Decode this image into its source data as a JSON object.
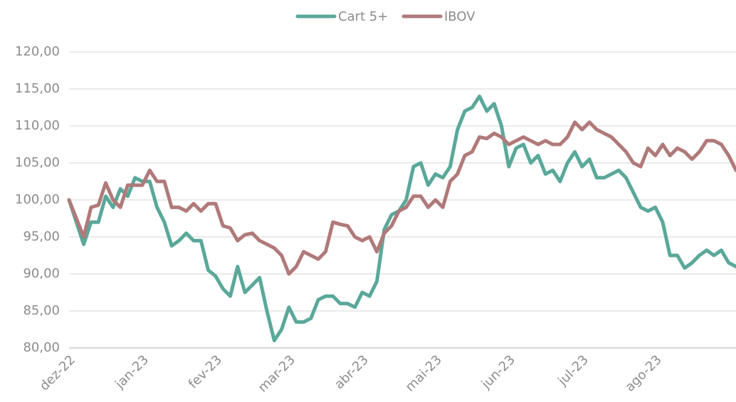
{
  "chart_data": {
    "type": "line",
    "categories": [
      "dez-22",
      null,
      null,
      null,
      null,
      null,
      null,
      null,
      null,
      null,
      "jan-23",
      null,
      null,
      null,
      null,
      null,
      null,
      null,
      null,
      null,
      "fev-23",
      null,
      null,
      null,
      null,
      null,
      null,
      null,
      null,
      null,
      "mar-23",
      null,
      null,
      null,
      null,
      null,
      null,
      null,
      null,
      null,
      "abr-23",
      null,
      null,
      null,
      null,
      null,
      null,
      null,
      null,
      null,
      "mai-23",
      null,
      null,
      null,
      null,
      null,
      null,
      null,
      null,
      null,
      "jun-23",
      null,
      null,
      null,
      null,
      null,
      null,
      null,
      null,
      null,
      "jul-23",
      null,
      null,
      null,
      null,
      null,
      null,
      null,
      null,
      null,
      "ago-23",
      null,
      null,
      null,
      null,
      null,
      null,
      null,
      null,
      null,
      null,
      null
    ],
    "series": [
      {
        "name": "Cart 5+",
        "color": "#5aa89a",
        "values": [
          100,
          97,
          94,
          97,
          97,
          100.5,
          99,
          101.5,
          100.5,
          103,
          102.5,
          102.5,
          99,
          97,
          93.8,
          94.5,
          95.5,
          94.5,
          94.5,
          90.5,
          89.7,
          88,
          87,
          91,
          87.5,
          88.5,
          89.5,
          85,
          81,
          82.5,
          85.5,
          83.5,
          83.5,
          84,
          86.5,
          87,
          87,
          86,
          86,
          85.5,
          87.5,
          87,
          89,
          96,
          98,
          98.5,
          100,
          104.5,
          105,
          102,
          103.5,
          103,
          104.5,
          109.5,
          112,
          112.5,
          114,
          112,
          113,
          110,
          104.5,
          107,
          107.5,
          105,
          106,
          103.5,
          104,
          102.5,
          105,
          106.5,
          104.5,
          105.5,
          103,
          103,
          103.5,
          104,
          103,
          101,
          99,
          98.5,
          99,
          97,
          92.5,
          92.5,
          90.8,
          91.5,
          92.5,
          93.2,
          92.5,
          93.2,
          91.5,
          91
        ]
      },
      {
        "name": "IBOV",
        "color": "#b07a7a",
        "values": [
          100,
          97.5,
          95,
          99,
          99.3,
          102.3,
          100,
          99,
          102,
          102,
          102,
          104,
          102.5,
          102.5,
          99,
          99,
          98.5,
          99.5,
          98.5,
          99.5,
          99.5,
          96.5,
          96.2,
          94.5,
          95.3,
          95.5,
          94.5,
          94,
          93.5,
          92.5,
          90,
          91,
          93,
          92.5,
          92,
          93,
          97,
          96.7,
          96.5,
          95,
          94.5,
          95,
          93,
          95.5,
          96.5,
          98.5,
          99,
          100.5,
          100.5,
          99,
          100,
          99,
          102.5,
          103.5,
          106,
          106.5,
          108.5,
          108.3,
          109,
          108.5,
          107.5,
          108,
          108.5,
          108,
          107.5,
          108,
          107.5,
          107.5,
          108.5,
          110.5,
          109.5,
          110.5,
          109.5,
          109,
          108.5,
          107.5,
          106.5,
          105,
          104.5,
          107,
          106,
          107.5,
          106,
          107,
          106.5,
          105.5,
          106.5,
          108,
          108,
          107.5,
          106,
          104
        ]
      }
    ],
    "ylim": [
      80,
      120
    ],
    "yticks": [
      {
        "value": 80,
        "label": "80,00"
      },
      {
        "value": 85,
        "label": "85,00"
      },
      {
        "value": 90,
        "label": "90,00"
      },
      {
        "value": 95,
        "label": "95,00"
      },
      {
        "value": 100,
        "label": "100,00"
      },
      {
        "value": 105,
        "label": "105,00"
      },
      {
        "value": 110,
        "label": "110,00"
      },
      {
        "value": 115,
        "label": "115,00"
      },
      {
        "value": 120,
        "label": "120,00"
      }
    ],
    "grid": true,
    "legend": "top"
  }
}
